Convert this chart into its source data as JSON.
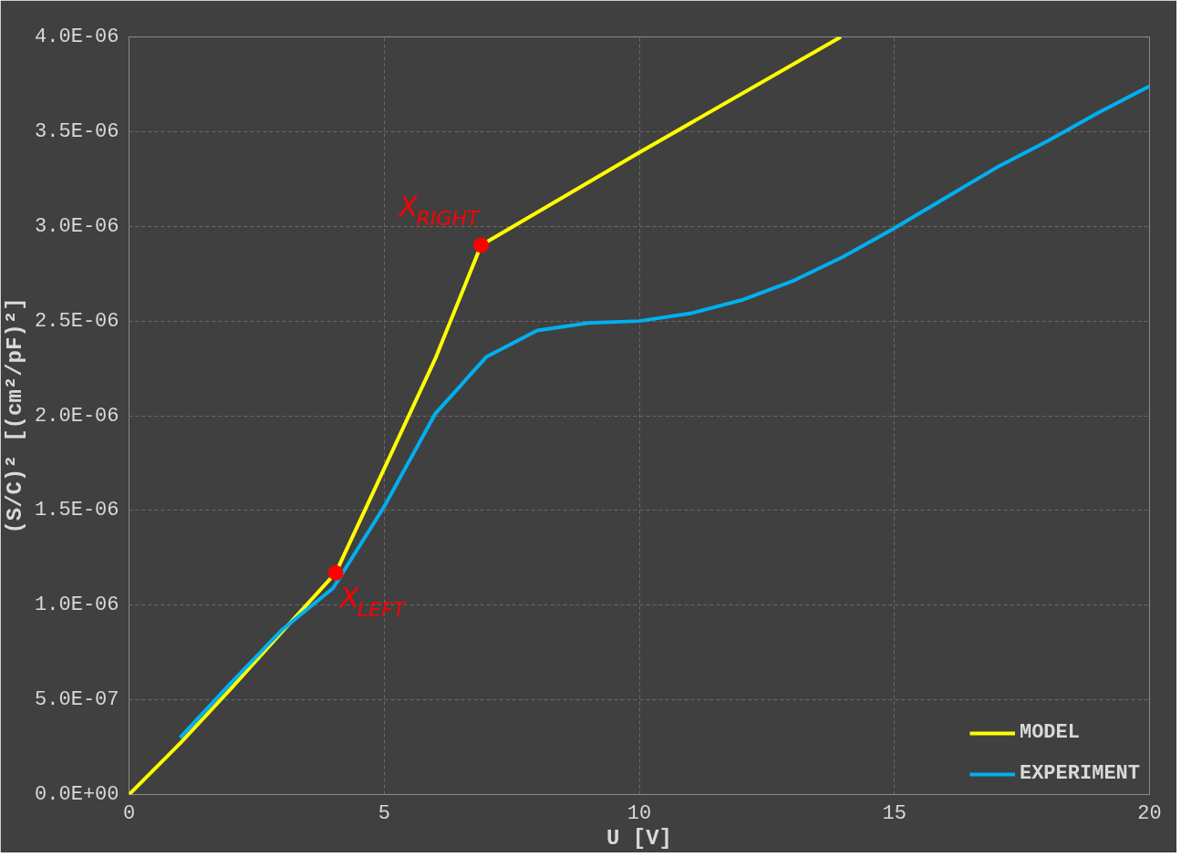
{
  "chart_data": {
    "type": "line",
    "xlabel": "U [V]",
    "ylabel": "(S/C)² [(cm²/pF)²]",
    "xlim": [
      0,
      20
    ],
    "xticks": [
      0,
      5,
      10,
      15,
      20
    ],
    "ylim": [
      0,
      4e-06
    ],
    "yticks": [
      {
        "value": 0,
        "label": "0.0E+00"
      },
      {
        "value": 5e-07,
        "label": "5.0E-07"
      },
      {
        "value": 1e-06,
        "label": "1.0E-06"
      },
      {
        "value": 1.5e-06,
        "label": "1.5E-06"
      },
      {
        "value": 2e-06,
        "label": "2.0E-06"
      },
      {
        "value": 2.5e-06,
        "label": "2.5E-06"
      },
      {
        "value": 3e-06,
        "label": "3.0E-06"
      },
      {
        "value": 3.5e-06,
        "label": "3.5E-06"
      },
      {
        "value": 4e-06,
        "label": "4.0E-06"
      }
    ],
    "grid": true,
    "legend": "bottom right",
    "marker": "none",
    "line_style": "solid",
    "series": [
      {
        "name": "MODEL",
        "color": "#ffff00",
        "x": [
          0,
          1,
          2,
          3,
          4.05,
          5,
          6,
          6.9,
          10,
          13.95
        ],
        "values": [
          0,
          2.7e-07,
          5.6e-07,
          8.6e-07,
          1.17e-06,
          1.72e-06,
          2.3e-06,
          2.9e-06,
          3.39e-06,
          4e-06
        ]
      },
      {
        "name": "EXPERIMENT",
        "color": "#00b0f0",
        "x": [
          1,
          2,
          3,
          4,
          5,
          6,
          7,
          8,
          9,
          10,
          11,
          12,
          13,
          14,
          15,
          16,
          17,
          18,
          19,
          20
        ],
        "values": [
          3e-07,
          5.9e-07,
          8.7e-07,
          1.09e-06,
          1.52e-06,
          2.01e-06,
          2.31e-06,
          2.45e-06,
          2.49e-06,
          2.5e-06,
          2.54e-06,
          2.61e-06,
          2.71e-06,
          2.84e-06,
          2.99e-06,
          3.15e-06,
          3.31e-06,
          3.45e-06,
          3.6e-06,
          3.74e-06
        ]
      },
      {
        "type": "scatter",
        "marker": "circle",
        "color": "#ff0000",
        "x": [
          4.05,
          6.9
        ],
        "values": [
          1.17e-06,
          2.9e-06
        ]
      }
    ],
    "annotations": [
      {
        "text": "X$_{LEFT}$",
        "x": 4.05,
        "y": 1.17e-06
      },
      {
        "text": "X$_{RIGHT}$",
        "x": 6.9,
        "y": 2.9e-06
      }
    ]
  }
}
